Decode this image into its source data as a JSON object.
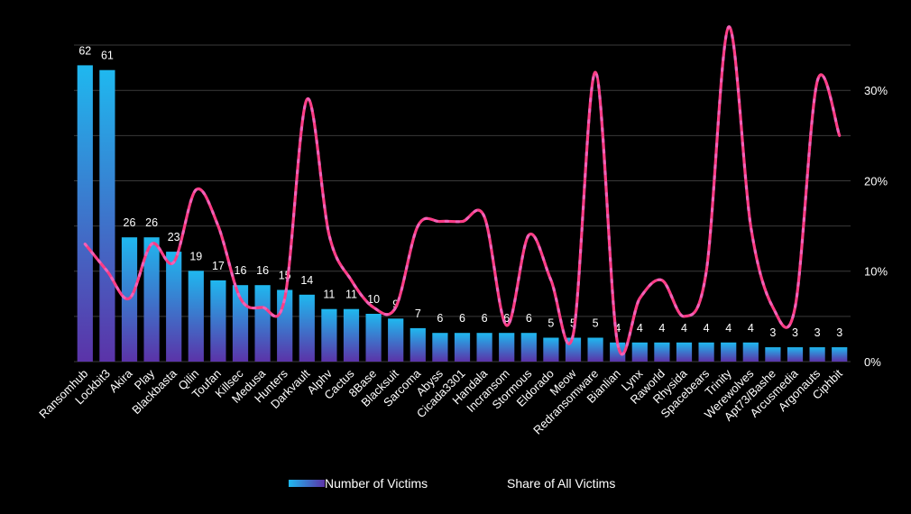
{
  "chart_data": {
    "type": "bar",
    "categories": [
      "Ransomhub",
      "Lockbit3",
      "Akira",
      "Play",
      "Blackbasta",
      "Qilin",
      "Toufan",
      "Killsec",
      "Medusa",
      "Hunters",
      "Darkvault",
      "Alphv",
      "Cactus",
      "8Base",
      "Blacksuit",
      "Sarcoma",
      "Abyss",
      "Cicada3301",
      "Handala",
      "Incransom",
      "Stormous",
      "Eldorado",
      "Meow",
      "Redransomware",
      "Bianlian",
      "Lynx",
      "Raworld",
      "Rhysida",
      "Spacebears",
      "Trinity",
      "Werewolves",
      "Apt73/Bashe",
      "Arcusmedia",
      "Argonauts",
      "Ciphbit"
    ],
    "series": [
      {
        "name": "Number of Victims",
        "type": "bar",
        "axis": "left",
        "values": [
          62,
          61,
          26,
          26,
          23,
          19,
          17,
          16,
          16,
          15,
          14,
          11,
          11,
          10,
          9,
          7,
          6,
          6,
          6,
          6,
          6,
          5,
          5,
          5,
          4,
          4,
          4,
          4,
          4,
          4,
          4,
          3,
          3,
          3,
          3
        ]
      },
      {
        "name": "Share of All Victims",
        "type": "line",
        "axis": "right",
        "values": [
          13,
          10,
          7,
          13,
          11,
          19,
          15,
          7,
          6,
          7,
          29,
          14,
          9,
          6,
          6,
          15,
          15.5,
          15.5,
          16,
          4,
          14,
          9,
          3,
          32,
          2,
          7,
          9,
          5,
          10,
          37,
          15,
          6,
          6,
          31,
          25
        ]
      }
    ],
    "left_axis": {
      "ylim": [
        0,
        70
      ]
    },
    "right_axis": {
      "ylim": [
        0,
        37
      ],
      "ticks": [
        "0%",
        "10%",
        "20%",
        "30%"
      ]
    },
    "grid": true,
    "legend": {
      "position": "bottom"
    },
    "colors": {
      "bar_top": "#1fb8ef",
      "bar_bottom": "#5b33a8",
      "line_main": "#ff3d86",
      "line_highlight": "#e77de0",
      "grid": "#3a3a3a",
      "background": "#000000"
    }
  }
}
